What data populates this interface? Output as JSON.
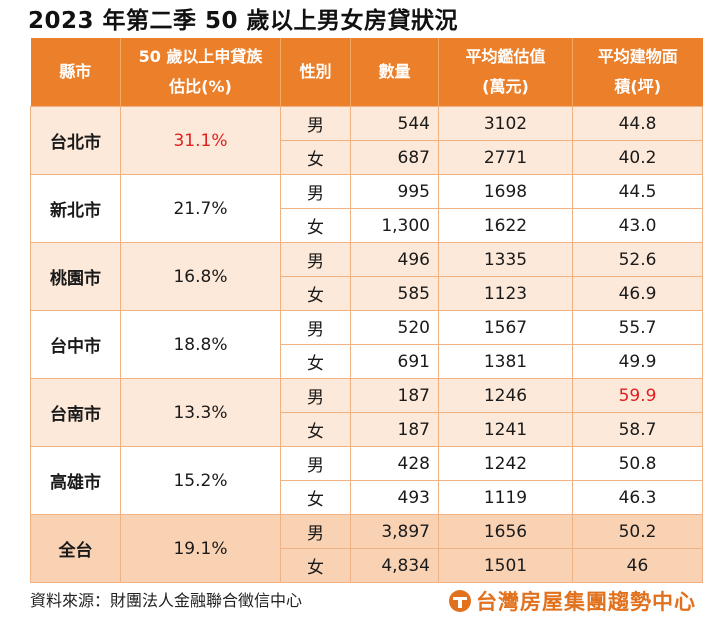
{
  "title": "2023 年第二季 50 歲以上男女房貸狀況",
  "headers": {
    "city": "縣市",
    "share_line1": "50 歲以上申貸族",
    "share_line2": "估比(%)",
    "gender": "性別",
    "count": "數量",
    "value_line1": "平均鑑估值",
    "value_line2": "(萬元)",
    "area_line1": "平均建物面",
    "area_line2": "積(坪)"
  },
  "rows": [
    {
      "city": "台北市",
      "share": "31.1%",
      "share_highlight": true,
      "male": {
        "gender": "男",
        "count": "544",
        "value": "3102",
        "area": "44.8"
      },
      "female": {
        "gender": "女",
        "count": "687",
        "value": "2771",
        "area": "40.2"
      }
    },
    {
      "city": "新北市",
      "share": "21.7%",
      "male": {
        "gender": "男",
        "count": "995",
        "value": "1698",
        "area": "44.5"
      },
      "female": {
        "gender": "女",
        "count": "1,300",
        "value": "1622",
        "area": "43.0"
      }
    },
    {
      "city": "桃園市",
      "share": "16.8%",
      "male": {
        "gender": "男",
        "count": "496",
        "value": "1335",
        "area": "52.6"
      },
      "female": {
        "gender": "女",
        "count": "585",
        "value": "1123",
        "area": "46.9"
      }
    },
    {
      "city": "台中市",
      "share": "18.8%",
      "male": {
        "gender": "男",
        "count": "520",
        "value": "1567",
        "area": "55.7"
      },
      "female": {
        "gender": "女",
        "count": "691",
        "value": "1381",
        "area": "49.9"
      }
    },
    {
      "city": "台南市",
      "share": "13.3%",
      "male": {
        "gender": "男",
        "count": "187",
        "value": "1246",
        "area": "59.9",
        "area_highlight": true
      },
      "female": {
        "gender": "女",
        "count": "187",
        "value": "1241",
        "area": "58.7"
      }
    },
    {
      "city": "高雄市",
      "share": "15.2%",
      "male": {
        "gender": "男",
        "count": "428",
        "value": "1242",
        "area": "50.8"
      },
      "female": {
        "gender": "女",
        "count": "493",
        "value": "1119",
        "area": "46.3"
      }
    },
    {
      "city": "全台",
      "share": "19.1%",
      "male": {
        "gender": "男",
        "count": "3,897",
        "value": "1656",
        "area": "50.2"
      },
      "female": {
        "gender": "女",
        "count": "4,834",
        "value": "1501",
        "area": "46"
      }
    }
  ],
  "source": "資料來源：財團法人金融聯合徵信中心",
  "brand": "台灣房屋集團趨勢中心",
  "colors": {
    "header": "#ec7f2a",
    "alt_row": "#fce9da",
    "total_row": "#f9d2b4",
    "highlight": "#e02020",
    "brand": "#e2711d"
  }
}
